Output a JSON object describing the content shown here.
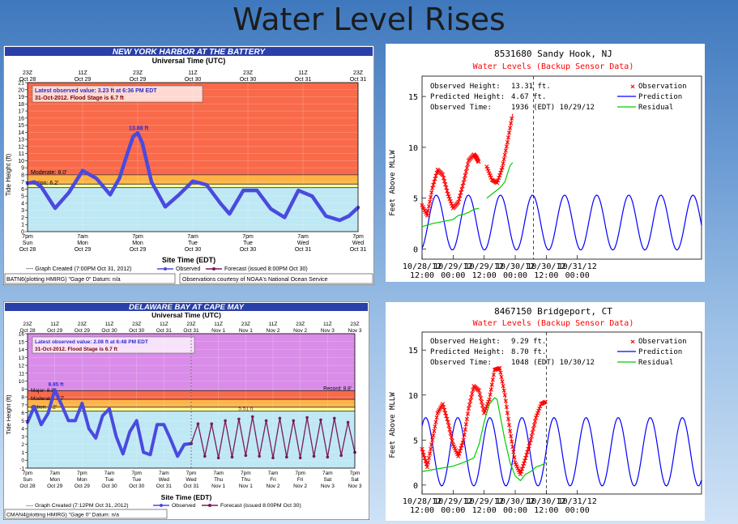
{
  "slide": {
    "title": "Water Level Rises"
  },
  "chart_data": [
    {
      "type": "line",
      "title": "NEW YORK HARBOR AT THE BATTERY",
      "top_axis_label": "Universal Time (UTC)",
      "top_ticks": [
        {
          "l1": "23Z",
          "l2": "Oct 28",
          "t": 0
        },
        {
          "l1": "11Z",
          "l2": "Oct 29",
          "t": 12
        },
        {
          "l1": "23Z",
          "l2": "Oct 29",
          "t": 24
        },
        {
          "l1": "11Z",
          "l2": "Oct 30",
          "t": 36
        },
        {
          "l1": "23Z",
          "l2": "Oct 30",
          "t": 48
        },
        {
          "l1": "11Z",
          "l2": "Oct 31",
          "t": 60
        },
        {
          "l1": "23Z",
          "l2": "Oct 31",
          "t": 72
        }
      ],
      "bottom_ticks": [
        {
          "l1": "7pm",
          "l2": "Sun",
          "l3": "Oct 28",
          "t": 0
        },
        {
          "l1": "7am",
          "l2": "Mon",
          "l3": "Oct 29",
          "t": 12
        },
        {
          "l1": "7pm",
          "l2": "Mon",
          "l3": "Oct 29",
          "t": 24
        },
        {
          "l1": "7am",
          "l2": "Tue",
          "l3": "Oct 30",
          "t": 36
        },
        {
          "l1": "7pm",
          "l2": "Tue",
          "l3": "Oct 30",
          "t": 48
        },
        {
          "l1": "7am",
          "l2": "Wed",
          "l3": "Oct 31",
          "t": 60
        },
        {
          "l1": "7pm",
          "l2": "Wed",
          "l3": "Oct 31",
          "t": 72
        }
      ],
      "xlabel": "Site Time (EDT)",
      "ylabel": "Tide Height (ft)",
      "ylim": [
        0,
        21
      ],
      "yticks": [
        0,
        1,
        2,
        3,
        4,
        5,
        6,
        7,
        8,
        9,
        10,
        11,
        12,
        13,
        14,
        15,
        16,
        17,
        18,
        19,
        20,
        21
      ],
      "xlim_hours": [
        0,
        72
      ],
      "info_line1": "Latest observed value: 3.23 ft at 6:36 PM EDT",
      "info_line2": "31-Oct-2012. Flood Stage is 6.7 ft",
      "bands": [
        {
          "from": 0,
          "to": 6.2,
          "color": "#bfe8f5"
        },
        {
          "from": 6.2,
          "to": 6.7,
          "color": "#ffff99"
        },
        {
          "from": 6.7,
          "to": 8.0,
          "color": "#ffb347"
        },
        {
          "from": 8.0,
          "to": 21,
          "color": "#f96a4a"
        }
      ],
      "threshold_labels": [
        {
          "text": "Moderate: 8.0'",
          "y": 8.0
        },
        {
          "text": "Action: 6.2'",
          "y": 6.5
        }
      ],
      "peak_label": {
        "text": "13.88 ft",
        "t": 24.2,
        "y": 13.88
      },
      "observed": {
        "name": "Observed",
        "color": "#4a4adf",
        "t": [
          0,
          1.5,
          3,
          6,
          9,
          12,
          15,
          18,
          20,
          22,
          23,
          24,
          25,
          27,
          30,
          33,
          36,
          39,
          42,
          44,
          47,
          50,
          53,
          56,
          59,
          62,
          65,
          68,
          70,
          72
        ],
        "y": [
          6.8,
          7.0,
          6.3,
          3.3,
          5.5,
          8.6,
          7.5,
          5.2,
          7.5,
          11.5,
          13.4,
          13.9,
          12.5,
          7.0,
          3.5,
          5.2,
          7.1,
          6.6,
          4.0,
          2.5,
          5.8,
          5.8,
          3.2,
          2.0,
          5.8,
          5.0,
          2.2,
          1.6,
          2.2,
          3.4
        ]
      },
      "legend": {
        "created": "---- Graph Created (7:00PM Oct 31, 2012)",
        "observed": "Observed",
        "forecast": "Forecast (issued 8:00PM Oct 30)"
      },
      "footer_left": "BATN6(plotting HMIRG) \"Gage 0\" Datum: n/a",
      "footer_right": "Observations courtesy of NOAA's National Ocean Service"
    },
    {
      "type": "line",
      "title": "DELAWARE BAY AT CAPE MAY",
      "top_axis_label": "Universal Time (UTC)",
      "top_ticks": [
        {
          "l1": "23Z",
          "l2": "Oct 28",
          "t": 0
        },
        {
          "l1": "11Z",
          "l2": "Oct 29",
          "t": 12
        },
        {
          "l1": "23Z",
          "l2": "Oct 29",
          "t": 24
        },
        {
          "l1": "11Z",
          "l2": "Oct 30",
          "t": 36
        },
        {
          "l1": "23Z",
          "l2": "Oct 30",
          "t": 48
        },
        {
          "l1": "11Z",
          "l2": "Oct 31",
          "t": 60
        },
        {
          "l1": "23Z",
          "l2": "Oct 31",
          "t": 72
        },
        {
          "l1": "11Z",
          "l2": "Nov 1",
          "t": 84
        },
        {
          "l1": "23Z",
          "l2": "Nov 1",
          "t": 96
        },
        {
          "l1": "11Z",
          "l2": "Nov 2",
          "t": 108
        },
        {
          "l1": "23Z",
          "l2": "Nov 2",
          "t": 120
        },
        {
          "l1": "11Z",
          "l2": "Nov 3",
          "t": 132
        },
        {
          "l1": "23Z",
          "l2": "Nov 3",
          "t": 144
        }
      ],
      "bottom_ticks": [
        {
          "l1": "7pm",
          "l2": "Sun",
          "l3": "Oct 28",
          "t": 0
        },
        {
          "l1": "7am",
          "l2": "Mon",
          "l3": "Oct 29",
          "t": 12
        },
        {
          "l1": "7pm",
          "l2": "Mon",
          "l3": "Oct 29",
          "t": 24
        },
        {
          "l1": "7am",
          "l2": "Tue",
          "l3": "Oct 30",
          "t": 36
        },
        {
          "l1": "7pm",
          "l2": "Tue",
          "l3": "Oct 30",
          "t": 48
        },
        {
          "l1": "7am",
          "l2": "Wed",
          "l3": "Oct 31",
          "t": 60
        },
        {
          "l1": "7pm",
          "l2": "Wed",
          "l3": "Oct 31",
          "t": 72
        },
        {
          "l1": "7am",
          "l2": "Thu",
          "l3": "Nov 1",
          "t": 84
        },
        {
          "l1": "7pm",
          "l2": "Thu",
          "l3": "Nov 1",
          "t": 96
        },
        {
          "l1": "7am",
          "l2": "Fri",
          "l3": "Nov 2",
          "t": 108
        },
        {
          "l1": "7pm",
          "l2": "Fri",
          "l3": "Nov 2",
          "t": 120
        },
        {
          "l1": "7am",
          "l2": "Sat",
          "l3": "Nov 3",
          "t": 132
        },
        {
          "l1": "7pm",
          "l2": "Sat",
          "l3": "Nov 3",
          "t": 144
        }
      ],
      "xlabel": "Site Time (EDT)",
      "ylabel": "Tide Height (ft)",
      "ylim": [
        -1,
        16
      ],
      "yticks": [
        -1,
        0,
        1,
        2,
        3,
        4,
        5,
        6,
        7,
        8,
        9,
        10,
        11,
        12,
        13,
        14,
        15,
        16
      ],
      "xlim_hours": [
        0,
        144
      ],
      "info_line1": "Latest observed value: 2.08 ft at 6:48 PM EDT",
      "info_line2": "31-Oct-2012. Flood Stage is 6.7 ft",
      "bands": [
        {
          "from": -1,
          "to": 6.2,
          "color": "#bfe8f5"
        },
        {
          "from": 6.2,
          "to": 6.7,
          "color": "#ffff99"
        },
        {
          "from": 6.7,
          "to": 7.7,
          "color": "#ffb347"
        },
        {
          "from": 7.7,
          "to": 8.8,
          "color": "#f96a4a"
        },
        {
          "from": 8.8,
          "to": 16,
          "color": "#d98ce8"
        }
      ],
      "threshold_labels": [
        {
          "text": "Major: 8.8'",
          "y": 8.5
        },
        {
          "text": "Moderate: 7.7'",
          "y": 7.5
        },
        {
          "text": "Action: 6.2'",
          "y": 6.4
        }
      ],
      "record_label": {
        "text": "Record: 8.8'",
        "y": 8.8
      },
      "peak_label": {
        "text": "8.85 ft",
        "t": 12.5,
        "y": 9.0
      },
      "forecast_peak_label": {
        "text": "5.51 ft",
        "t": 96,
        "y": 5.9
      },
      "observed": {
        "name": "Observed",
        "color": "#4a4adf",
        "t": [
          0,
          3,
          6,
          9,
          12,
          15,
          18,
          21,
          24,
          27,
          30,
          33,
          36,
          39,
          42,
          45,
          48,
          51,
          54,
          57,
          60,
          63,
          66,
          69,
          72
        ],
        "y": [
          4.8,
          6.8,
          4.5,
          5.9,
          8.9,
          7.0,
          5.0,
          5.0,
          7.2,
          4.0,
          2.8,
          5.6,
          6.5,
          3.0,
          0.8,
          3.6,
          5.0,
          1.0,
          0.7,
          4.5,
          4.5,
          2.6,
          0.5,
          2.0,
          2.1
        ]
      },
      "forecast": {
        "name": "Forecast",
        "color": "#7a1a5a",
        "t": [
          72,
          75,
          78,
          81,
          84,
          87,
          90,
          93,
          96,
          99,
          102,
          105,
          108,
          111,
          114,
          117,
          120,
          123,
          126,
          129,
          132,
          135,
          138,
          141,
          144
        ],
        "y": [
          2.1,
          4.6,
          0.5,
          4.6,
          0.3,
          5.0,
          0.4,
          5.2,
          0.6,
          5.5,
          0.5,
          5.0,
          0.3,
          5.3,
          0.4,
          5.0,
          0.3,
          5.4,
          0.5,
          5.1,
          0.4,
          5.3,
          0.6,
          4.8,
          1.0
        ]
      },
      "legend": {
        "created": "---- Graph Created (7:12PM Oct 31, 2012)",
        "observed": "Observed",
        "forecast": "Forecast (issued 8:00PM Oct 30)"
      },
      "footer_left": "CMAN4(plotting HMIRG) \"Gage 0\" Datum: n/a"
    },
    {
      "type": "line",
      "title": "8531680 Sandy Hook, NJ",
      "subtitle": "Water Levels (Backup Sensor Data)",
      "ylabel": "Feet Above MLLW",
      "ylim": [
        -1,
        17
      ],
      "yticks": [
        0,
        5,
        10,
        15
      ],
      "xlim_hours": [
        0,
        108
      ],
      "xticks": [
        {
          "l1": "10/28/12",
          "l2": "12:00",
          "t": 0
        },
        {
          "l1": "10/29/12",
          "l2": "00:00",
          "t": 12
        },
        {
          "l1": "10/29/12",
          "l2": "12:00",
          "t": 24
        },
        {
          "l1": "10/30/12",
          "l2": "00:00",
          "t": 36
        },
        {
          "l1": "10/30/12",
          "l2": "12:00",
          "t": 48
        },
        {
          "l1": "10/31/12",
          "l2": "00:00",
          "t": 60
        }
      ],
      "vline_t": 43,
      "info": [
        {
          "label": "Observed Height:",
          "value": "13.31 ft."
        },
        {
          "label": "Predicted Height:",
          "value": "4.67 ft."
        },
        {
          "label": "Observed Time:",
          "value": "1936 (EDT) 10/29/12"
        }
      ],
      "legend": [
        {
          "name": "Observation",
          "color": "#ff0000",
          "marker": "x"
        },
        {
          "name": "Prediction",
          "color": "#0000ff"
        },
        {
          "name": "Residual",
          "color": "#00cc00"
        }
      ],
      "prediction": {
        "mean": 2.6,
        "amp": 2.7,
        "period": 12.4,
        "phase": 5.5
      },
      "observation": {
        "segments": [
          {
            "t": [
              0,
              2,
              4,
              6,
              8,
              10,
              12,
              14,
              16,
              18,
              20,
              21,
              22
            ],
            "y": [
              4.3,
              3.3,
              6.0,
              7.8,
              7.3,
              5.4,
              4.0,
              4.6,
              6.5,
              8.7,
              9.3,
              9.0,
              8.5
            ]
          },
          {
            "t": [
              25,
              27,
              29,
              31,
              33,
              35
            ],
            "y": [
              8.1,
              6.8,
              6.5,
              8.0,
              10.5,
              13.3
            ]
          }
        ]
      },
      "residual": {
        "segments": [
          {
            "t": [
              0,
              4,
              8,
              12,
              14,
              16,
              18,
              20,
              22
            ],
            "y": [
              2.2,
              2.5,
              2.7,
              2.9,
              3.3,
              3.4,
              3.6,
              3.9,
              4.0
            ]
          },
          {
            "t": [
              25,
              28,
              30,
              32,
              34,
              35
            ],
            "y": [
              5.0,
              5.6,
              6.0,
              6.6,
              8.2,
              8.5
            ]
          }
        ]
      }
    },
    {
      "type": "line",
      "title": "8467150 Bridgeport, CT",
      "subtitle": "Water Levels (Backup Sensor Data)",
      "ylabel": "Feet Above MLLW",
      "ylim": [
        -1,
        17
      ],
      "yticks": [
        0,
        5,
        10,
        15
      ],
      "xlim_hours": [
        0,
        108
      ],
      "xticks": [
        {
          "l1": "10/28/12",
          "l2": "12:00",
          "t": 0
        },
        {
          "l1": "10/29/12",
          "l2": "00:00",
          "t": 12
        },
        {
          "l1": "10/29/12",
          "l2": "12:00",
          "t": 24
        },
        {
          "l1": "10/30/12",
          "l2": "00:00",
          "t": 36
        },
        {
          "l1": "10/30/12",
          "l2": "12:00",
          "t": 48
        },
        {
          "l1": "10/31/12",
          "l2": "00:00",
          "t": 60
        }
      ],
      "vline_t": 48,
      "info": [
        {
          "label": "Observed Height:",
          "value": "9.29 ft."
        },
        {
          "label": "Predicted Height:",
          "value": "8.70 ft."
        },
        {
          "label": "Observed Time:",
          "value": "1048 (EDT) 10/30/12"
        }
      ],
      "legend": [
        {
          "name": "Observation",
          "color": "#ff0000",
          "marker": "x"
        },
        {
          "name": "Prediction",
          "color": "#0000ff"
        },
        {
          "name": "Residual",
          "color": "#00cc00"
        }
      ],
      "prediction": {
        "mean": 3.7,
        "amp": 3.8,
        "period": 12.4,
        "phase": 1.4
      },
      "observation": {
        "segments": [
          {
            "t": [
              0,
              2,
              4,
              6,
              8,
              10,
              12,
              14,
              16,
              18,
              20,
              22,
              24,
              26,
              28,
              30,
              32,
              34,
              36,
              38,
              40,
              42,
              44,
              46,
              48
            ],
            "y": [
              4.0,
              2.0,
              5.0,
              8.0,
              9.0,
              7.0,
              4.5,
              3.2,
              5.0,
              8.5,
              11.0,
              10.5,
              8.0,
              9.5,
              12.8,
              13.0,
              10.0,
              6.0,
              2.5,
              1.2,
              3.0,
              5.0,
              7.5,
              9.0,
              9.3
            ]
          }
        ]
      },
      "residual": {
        "segments": [
          {
            "t": [
              0,
              4,
              8,
              12,
              16,
              20,
              22,
              24,
              26,
              28,
              29,
              30,
              31,
              32,
              34,
              36,
              38,
              40,
              42,
              44,
              46,
              48
            ],
            "y": [
              1.5,
              1.7,
              1.9,
              2.1,
              2.5,
              3.0,
              4.5,
              7.0,
              9.0,
              9.7,
              9.5,
              8.0,
              6.5,
              5.0,
              2.5,
              1.0,
              0.5,
              1.2,
              1.5,
              2.0,
              2.2,
              2.5
            ]
          }
        ]
      }
    }
  ]
}
